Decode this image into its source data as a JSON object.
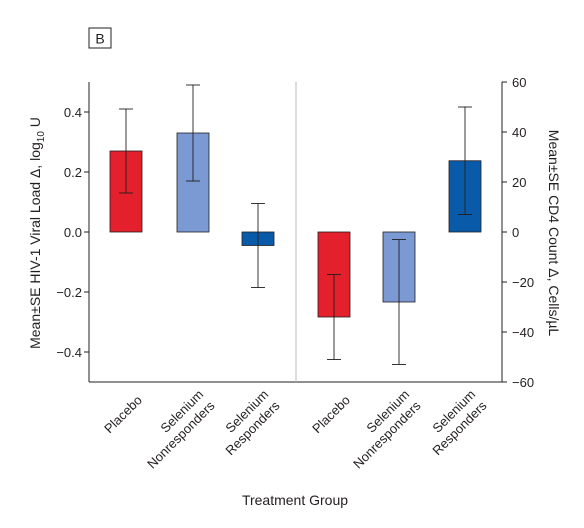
{
  "panel_label": "B",
  "chart_data": {
    "type": "bar",
    "xlabel": "Treatment Group",
    "groups": [
      {
        "axis": "left",
        "ylabel_parts": [
          "Mean±SE HIV-1 Viral Load Δ, log",
          "10",
          " U"
        ],
        "ylim": [
          -0.5,
          0.5
        ],
        "yticks": [
          -0.4,
          -0.2,
          0.0,
          0.2,
          0.4
        ],
        "ytick_labels": [
          "−0.4",
          "−0.2",
          "0.0",
          "0.2",
          "0.4"
        ],
        "categories": [
          "Placebo",
          "Selenium Nonresponders",
          "Selenium Responders"
        ],
        "category_lines": [
          [
            "Placebo"
          ],
          [
            "Selenium",
            "Nonresponders"
          ],
          [
            "Selenium",
            "Responders"
          ]
        ],
        "values": [
          0.27,
          0.33,
          -0.045
        ],
        "se": [
          0.14,
          0.16,
          0.14
        ]
      },
      {
        "axis": "right",
        "ylabel": "Mean±SE CD4 Count Δ, Cells/µL",
        "ylim": [
          -60,
          60
        ],
        "yticks": [
          -60,
          -40,
          -20,
          0,
          20,
          40,
          60
        ],
        "ytick_labels": [
          "−60",
          "−40",
          "−20",
          "0",
          "20",
          "40",
          "60"
        ],
        "categories": [
          "Placebo",
          "Selenium Nonresponders",
          "Selenium Responders"
        ],
        "category_lines": [
          [
            "Placebo"
          ],
          [
            "Selenium",
            "Nonresponders"
          ],
          [
            "Selenium",
            "Responders"
          ]
        ],
        "values": [
          -34,
          -28,
          28.5
        ],
        "se": [
          17,
          25,
          21.5
        ]
      }
    ],
    "bar_colors": [
      "#e3202b",
      "#7b9ad3",
      "#0a5aaa"
    ],
    "grid": false
  }
}
